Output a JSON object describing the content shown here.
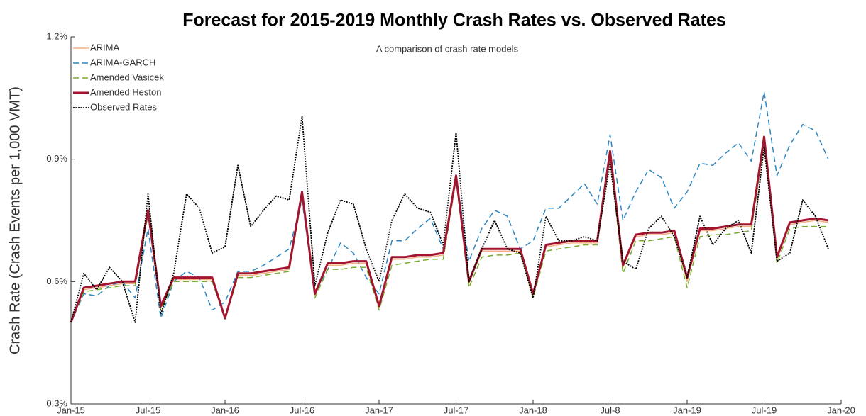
{
  "chart_data": {
    "type": "line",
    "title": "Forecast for 2015-2019 Monthly Crash Rates vs. Observed Rates",
    "subtitle": "A comparison of crash rate models",
    "y_label": "Crash Rate (Crash Events per 1,000 VMT)",
    "categories": [
      "Jan-15",
      null,
      null,
      null,
      null,
      null,
      "Jul-15",
      null,
      null,
      null,
      null,
      null,
      "Jan-16",
      null,
      null,
      null,
      null,
      null,
      "Jul-16",
      null,
      null,
      null,
      null,
      null,
      "Jan-17",
      null,
      null,
      null,
      null,
      null,
      "Jul-17",
      null,
      null,
      null,
      null,
      null,
      "Jan-18",
      null,
      null,
      null,
      null,
      null,
      "Jul-8",
      null,
      null,
      null,
      null,
      null,
      "Jan-19",
      null,
      null,
      null,
      null,
      null,
      "Jul-19",
      null,
      null,
      null,
      null,
      null,
      "Jan-20"
    ],
    "ylim": [
      0.3,
      1.2
    ],
    "yticks": [
      {
        "value": 0.3,
        "label": "0.3%"
      },
      {
        "value": 0.6,
        "label": "0.6%"
      },
      {
        "value": 0.9,
        "label": "0.9%"
      },
      {
        "value": 1.2,
        "label": "1.2%"
      }
    ],
    "grid": false,
    "legend": "upper left",
    "series": [
      {
        "name": "ARIMA",
        "color": "#f4b183",
        "line_style": "solid",
        "values": [
          0.5,
          0.58,
          0.585,
          0.59,
          0.595,
          0.595,
          0.77,
          0.535,
          0.605,
          0.605,
          0.605,
          0.605,
          0.51,
          0.615,
          0.615,
          0.62,
          0.625,
          0.63,
          0.815,
          0.565,
          0.64,
          0.64,
          0.645,
          0.645,
          0.535,
          0.655,
          0.655,
          0.66,
          0.66,
          0.665,
          0.855,
          0.595,
          0.675,
          0.675,
          0.675,
          0.675,
          0.565,
          0.685,
          0.69,
          0.695,
          0.695,
          0.695,
          0.915,
          0.635,
          0.71,
          0.715,
          0.715,
          0.72,
          0.6,
          0.725,
          0.725,
          0.73,
          0.735,
          0.735,
          0.95,
          0.655,
          0.74,
          0.745,
          0.75,
          0.745,
          null
        ]
      },
      {
        "name": "ARIMA-GARCH",
        "color": "#2e86c1",
        "line_style": "dashed",
        "values": [
          0.5,
          0.57,
          0.565,
          0.59,
          0.6,
          0.56,
          0.73,
          0.51,
          0.6,
          0.625,
          0.61,
          0.53,
          0.55,
          0.625,
          0.625,
          0.64,
          0.66,
          0.68,
          0.8,
          0.57,
          0.63,
          0.695,
          0.67,
          0.61,
          0.57,
          0.7,
          0.7,
          0.73,
          0.755,
          0.68,
          0.86,
          0.65,
          0.73,
          0.775,
          0.76,
          0.68,
          0.7,
          0.78,
          0.78,
          0.81,
          0.84,
          0.79,
          0.96,
          0.75,
          0.82,
          0.875,
          0.855,
          0.78,
          0.82,
          0.89,
          0.885,
          0.915,
          0.94,
          0.895,
          1.065,
          0.86,
          0.935,
          0.985,
          0.97,
          0.9,
          null
        ]
      },
      {
        "name": "Amended Vasicek",
        "color": "#77ac30",
        "line_style": "dashed",
        "values": [
          0.5,
          0.575,
          0.58,
          0.585,
          0.59,
          0.59,
          0.765,
          0.53,
          0.6,
          0.6,
          0.6,
          0.6,
          0.51,
          0.61,
          0.61,
          0.615,
          0.62,
          0.625,
          0.81,
          0.56,
          0.63,
          0.63,
          0.635,
          0.635,
          0.53,
          0.64,
          0.645,
          0.65,
          0.655,
          0.655,
          0.85,
          0.585,
          0.66,
          0.665,
          0.665,
          0.67,
          0.56,
          0.675,
          0.68,
          0.685,
          0.69,
          0.69,
          0.905,
          0.62,
          0.7,
          0.7,
          0.705,
          0.71,
          0.585,
          0.71,
          0.715,
          0.715,
          0.72,
          0.725,
          0.94,
          0.645,
          0.73,
          0.735,
          0.735,
          0.735,
          null
        ]
      },
      {
        "name": "Amended Heston",
        "color": "#a2142f",
        "line_style": "bold",
        "values": [
          0.5,
          0.585,
          0.59,
          0.595,
          0.6,
          0.6,
          0.775,
          0.54,
          0.61,
          0.61,
          0.61,
          0.61,
          0.51,
          0.62,
          0.62,
          0.625,
          0.63,
          0.635,
          0.82,
          0.57,
          0.645,
          0.645,
          0.65,
          0.65,
          0.54,
          0.66,
          0.66,
          0.665,
          0.665,
          0.67,
          0.86,
          0.6,
          0.68,
          0.68,
          0.68,
          0.68,
          0.57,
          0.69,
          0.695,
          0.7,
          0.7,
          0.7,
          0.92,
          0.64,
          0.715,
          0.72,
          0.72,
          0.725,
          0.61,
          0.73,
          0.73,
          0.735,
          0.74,
          0.74,
          0.955,
          0.66,
          0.745,
          0.75,
          0.755,
          0.75,
          null
        ]
      },
      {
        "name": "Observed Rates",
        "color": "#000000",
        "line_style": "dotted",
        "values": [
          0.5,
          0.62,
          0.58,
          0.635,
          0.6,
          0.5,
          0.815,
          0.52,
          0.62,
          0.815,
          0.78,
          0.67,
          0.685,
          0.885,
          0.735,
          0.775,
          0.81,
          0.8,
          1.005,
          0.59,
          0.72,
          0.8,
          0.79,
          0.68,
          0.6,
          0.75,
          0.815,
          0.78,
          0.77,
          0.69,
          0.965,
          0.6,
          0.68,
          0.75,
          0.68,
          0.67,
          0.56,
          0.76,
          0.7,
          0.7,
          0.71,
          0.7,
          0.89,
          0.65,
          0.63,
          0.73,
          0.76,
          0.71,
          0.61,
          0.76,
          0.69,
          0.73,
          0.75,
          0.67,
          0.93,
          0.65,
          0.67,
          0.8,
          0.76,
          0.68,
          null
        ]
      }
    ]
  }
}
